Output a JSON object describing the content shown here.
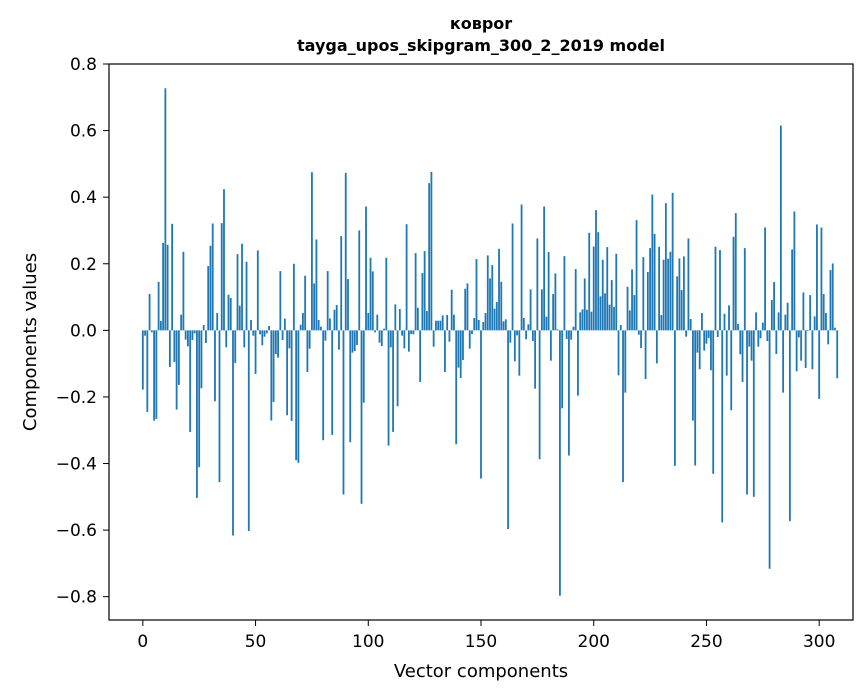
{
  "chart_data": {
    "type": "bar",
    "title": "ковроr",
    "subtitle": "tayga_upos_skipgram_300_2_2019 model",
    "xlabel": "Vector components",
    "ylabel": "Components values",
    "xlim": [
      -15,
      315
    ],
    "ylim": [
      -0.87,
      0.8
    ],
    "xticks": [
      0,
      50,
      100,
      150,
      200,
      250,
      300
    ],
    "yticks": [
      -0.8,
      -0.6,
      -0.4,
      -0.2,
      0.0,
      0.2,
      0.4,
      0.6,
      0.8
    ],
    "xtick_labels": [
      "0",
      "50",
      "100",
      "150",
      "200",
      "250",
      "300"
    ],
    "ytick_labels": [
      "−0.8",
      "−0.6",
      "−0.4",
      "−0.2",
      "0.0",
      "0.2",
      "0.4",
      "0.6",
      "0.8"
    ],
    "bar_color": "#1f77b4",
    "series": [
      {
        "name": "components",
        "values": [
          -0.178,
          -0.016,
          -0.245,
          0.109,
          -0.006,
          -0.271,
          -0.266,
          0.146,
          0.028,
          0.263,
          0.727,
          0.257,
          -0.11,
          0.32,
          -0.095,
          -0.238,
          -0.164,
          0.047,
          0.236,
          -0.028,
          -0.048,
          -0.305,
          -0.029,
          -0.009,
          -0.503,
          -0.411,
          -0.174,
          0.016,
          -0.038,
          0.193,
          0.254,
          0.321,
          -0.213,
          0.052,
          -0.456,
          0.322,
          0.424,
          -0.051,
          0.107,
          0.097,
          -0.616,
          -0.098,
          0.229,
          0.074,
          0.26,
          -0.051,
          0.206,
          -0.603,
          0.031,
          -0.016,
          -0.131,
          0.24,
          -0.012,
          -0.045,
          -0.019,
          -0.009,
          0.013,
          -0.271,
          -0.215,
          -0.071,
          -0.082,
          0.178,
          -0.029,
          0.035,
          -0.255,
          -0.054,
          -0.272,
          0.2,
          -0.39,
          -0.398,
          0.017,
          0.052,
          0.164,
          -0.125,
          -0.055,
          0.475,
          0.141,
          0.273,
          0.031,
          0.011,
          -0.33,
          -0.031,
          0.178,
          0.036,
          -0.314,
          0.062,
          0.076,
          -0.058,
          0.283,
          -0.493,
          0.473,
          0.154,
          -0.336,
          -0.067,
          -0.062,
          -0.044,
          0.3,
          -0.521,
          -0.217,
          0.372,
          0.052,
          0.218,
          0.177,
          -0.006,
          0.047,
          -0.037,
          -0.047,
          0.005,
          0.218,
          -0.346,
          -0.051,
          -0.305,
          0.078,
          -0.228,
          0.064,
          -0.016,
          -0.054,
          0.319,
          -0.064,
          -0.011,
          -0.012,
          0.232,
          0.068,
          -0.155,
          0.172,
          0.238,
          0.058,
          0.442,
          0.476,
          -0.049,
          0.029,
          0.029,
          0.029,
          0.045,
          -0.125,
          0.046,
          -0.034,
          0.122,
          0.047,
          -0.342,
          -0.112,
          -0.143,
          -0.089,
          0.125,
          0.141,
          -0.055,
          -0.011,
          0.037,
          0.214,
          0.031,
          -0.445,
          0.025,
          0.052,
          0.225,
          0.156,
          0.196,
          0.065,
          0.085,
          0.245,
          0.146,
          0.027,
          0.033,
          -0.597,
          -0.037,
          0.321,
          -0.093,
          -0.015,
          -0.136,
          0.378,
          0.037,
          -0.027,
          0.018,
          0.123,
          -0.032,
          -0.175,
          0.276,
          -0.387,
          0.123,
          0.372,
          0.041,
          0.235,
          -0.091,
          0.109,
          0.171,
          0.003,
          -0.797,
          -0.234,
          0.223,
          -0.026,
          -0.376,
          -0.028,
          0.011,
          0.184,
          -0.196,
          0.054,
          0.063,
          0.156,
          0.062,
          0.293,
          0.056,
          0.252,
          0.361,
          0.295,
          0.102,
          0.212,
          0.111,
          0.25,
          0.077,
          0.151,
          0.07,
          0.23,
          -0.135,
          0.016,
          -0.456,
          -0.187,
          0.131,
          0.06,
          0.183,
          0.106,
          0.331,
          -0.013,
          -0.053,
          0.22,
          -0.146,
          0.175,
          0.247,
          0.408,
          0.29,
          -0.099,
          0.251,
          0.046,
          0.212,
          0.382,
          0.215,
          0.236,
          0.413,
          -0.407,
          0.162,
          0.216,
          0.121,
          0.222,
          -0.019,
          0.276,
          0.034,
          -0.271,
          -0.406,
          -0.067,
          -0.117,
          0.052,
          -0.061,
          -0.04,
          -0.023,
          -0.12,
          -0.431,
          0.251,
          -0.02,
          0.241,
          -0.577,
          0.05,
          -0.136,
          0.075,
          -0.24,
          0.281,
          0.352,
          0.019,
          -0.072,
          -0.155,
          0.247,
          -0.493,
          -0.049,
          -0.091,
          -0.5,
          0.054,
          -0.049,
          -0.024,
          0.023,
          0.309,
          -0.032,
          -0.716,
          0.091,
          0.145,
          -0.071,
          0.054,
          0.615,
          -0.187,
          0.047,
          0.083,
          -0.573,
          0.243,
          0.357,
          -0.123,
          -0.021,
          -0.091,
          0.114,
          -0.113,
          -0.002,
          0.106,
          -0.117,
          0.042,
          0.318,
          -0.206,
          0.309,
          0.109,
          0.052,
          -0.042,
          0.181,
          0.201,
          0.008,
          -0.144
        ]
      }
    ]
  }
}
